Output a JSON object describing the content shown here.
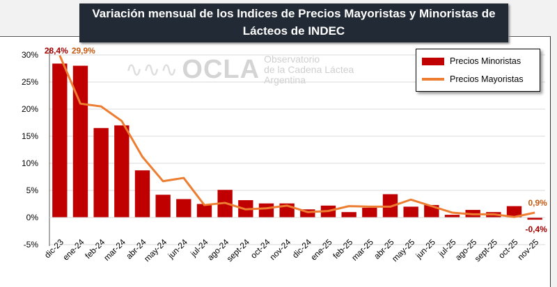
{
  "chart_data": {
    "type": "bar",
    "title": "Variación mensual de los Indices de Precios Mayoristas y Minoristas de Lácteos de INDEC",
    "xlabel": "",
    "ylabel": "",
    "ylim": [
      -5,
      30
    ],
    "yticks": [
      "-5%",
      "0%",
      "5%",
      "10%",
      "15%",
      "20%",
      "25%",
      "30%"
    ],
    "ytick_values": [
      -5,
      0,
      5,
      10,
      15,
      20,
      25,
      30
    ],
    "grid": true,
    "legend_position": "top-right",
    "categories": [
      "dic-23",
      "ene-24",
      "feb-24",
      "mar-24",
      "abr-24",
      "may-24",
      "jun-24",
      "jul-24",
      "ago-24",
      "sept-24",
      "oct-24",
      "nov-24",
      "dic-24",
      "ene-25",
      "feb-25",
      "mar-25",
      "abr-25",
      "may-25",
      "jun-25",
      "jul-25",
      "ago-25",
      "sept-25",
      "oct-25",
      "nov-25"
    ],
    "series": [
      {
        "name": "Precios Minoristas",
        "type": "bar",
        "color": "#c00000",
        "values": [
          28.4,
          28.0,
          16.5,
          17.0,
          8.7,
          4.2,
          3.4,
          2.5,
          5.1,
          3.2,
          2.6,
          2.6,
          1.5,
          2.2,
          1.0,
          1.8,
          4.3,
          2.0,
          2.3,
          0.5,
          1.4,
          1.0,
          2.1,
          -0.4
        ]
      },
      {
        "name": "Precios Mayoristas",
        "type": "line",
        "color": "#ed7d31",
        "values": [
          29.9,
          21.0,
          20.5,
          17.8,
          11.2,
          6.7,
          7.3,
          2.3,
          2.7,
          1.5,
          1.7,
          2.2,
          1.0,
          1.2,
          2.1,
          2.0,
          2.0,
          3.3,
          2.1,
          0.9,
          0.6,
          0.6,
          0.1,
          0.9
        ]
      }
    ],
    "data_labels": [
      {
        "series": 0,
        "index": 0,
        "text": "28,4%"
      },
      {
        "series": 1,
        "index": 0,
        "text": "29,9%"
      },
      {
        "series": 1,
        "index": 23,
        "text": "0,9%"
      },
      {
        "series": 0,
        "index": 23,
        "text": "-0,4%"
      }
    ]
  },
  "title_line1": "Variación mensual de los Indices de Precios Mayoristas y Minoristas de",
  "title_line2": "Lácteos de INDEC",
  "watermark": {
    "brand": "OCLA",
    "line1": "Observatorio",
    "line2": "de la Cadena Láctea",
    "line3": "Argentina"
  }
}
